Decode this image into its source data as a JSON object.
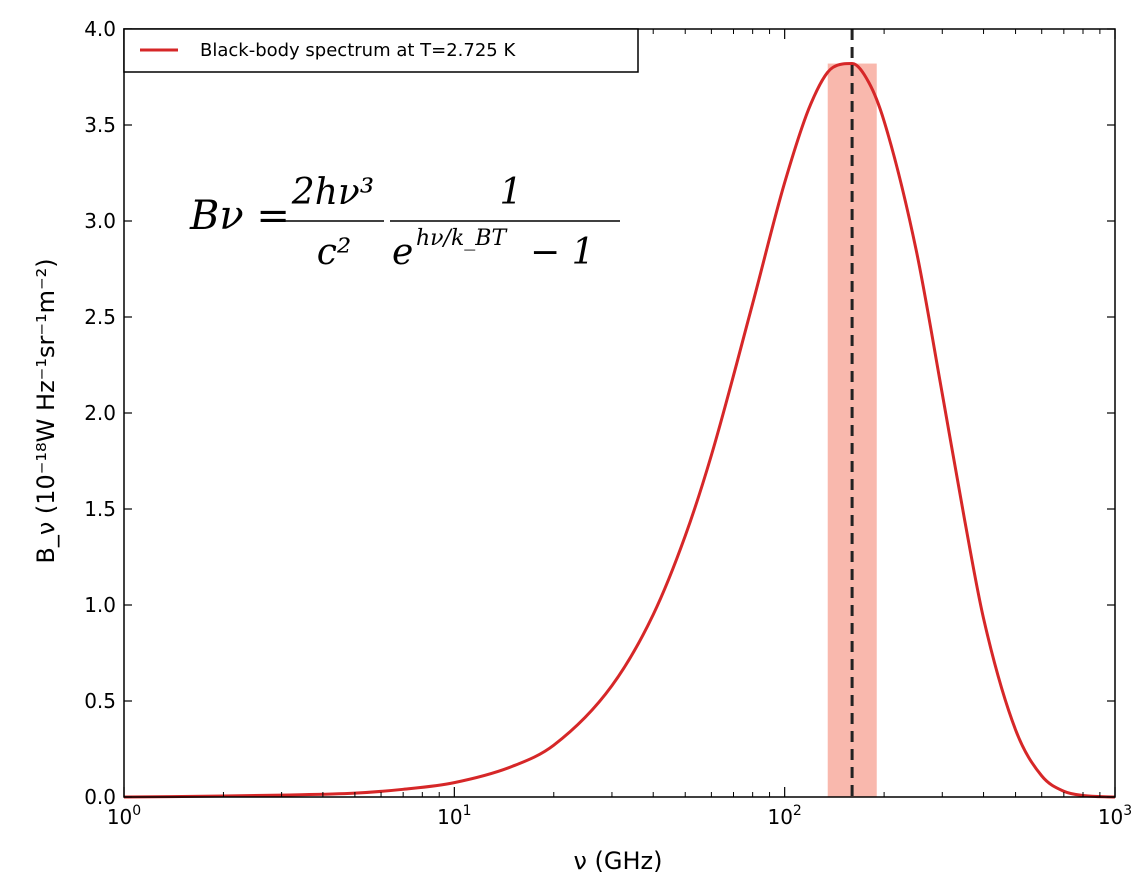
{
  "chart_data": {
    "type": "line",
    "x_scale": "log",
    "xlim": [
      1,
      1000
    ],
    "ylim": [
      0.0,
      4.0
    ],
    "xlabel": "ν (GHz)",
    "ylabel": "B_ν (10⁻¹⁸W Hz⁻¹sr⁻¹m⁻²)",
    "x_ticks": [
      {
        "base": "10",
        "exp": "0",
        "value": 1
      },
      {
        "base": "10",
        "exp": "1",
        "value": 10
      },
      {
        "base": "10",
        "exp": "2",
        "value": 100
      },
      {
        "base": "10",
        "exp": "3",
        "value": 1000
      }
    ],
    "y_ticks": [
      "0.0",
      "0.5",
      "1.0",
      "1.5",
      "2.0",
      "2.5",
      "3.0",
      "3.5",
      "4.0"
    ],
    "grid": false,
    "legend": {
      "placement": "top-left",
      "entries": [
        "Black-body spectrum at T=2.725 K"
      ]
    },
    "series": [
      {
        "name": "Black-body spectrum at T=2.725 K",
        "color": "#d62728",
        "x": [
          1,
          2,
          3,
          5,
          7,
          10,
          15,
          20,
          30,
          40,
          50,
          60,
          80,
          100,
          120,
          140,
          160,
          180,
          200,
          250,
          300,
          350,
          400,
          500,
          600,
          700,
          800,
          1000
        ],
        "y": [
          0.0,
          0.005,
          0.01,
          0.02,
          0.04,
          0.075,
          0.16,
          0.27,
          0.58,
          0.95,
          1.36,
          1.78,
          2.57,
          3.2,
          3.61,
          3.8,
          3.82,
          3.72,
          3.52,
          2.85,
          2.1,
          1.45,
          0.93,
          0.35,
          0.11,
          0.03,
          0.008,
          0.0
        ]
      }
    ],
    "peak_line": {
      "x": 160,
      "style": "dashed",
      "color": "#222222"
    },
    "peak_band": {
      "x_range": [
        135,
        190
      ],
      "y_top": 3.82,
      "color": "#f9b8ad"
    },
    "annotation": {
      "lhs": "Bν =",
      "frac1_num": "2hν³",
      "frac1_den": "c²",
      "frac2_num": "1",
      "frac2_den_e": "e",
      "frac2_den_exp": "hν/k_BT",
      "frac2_den_rest": "− 1"
    }
  }
}
